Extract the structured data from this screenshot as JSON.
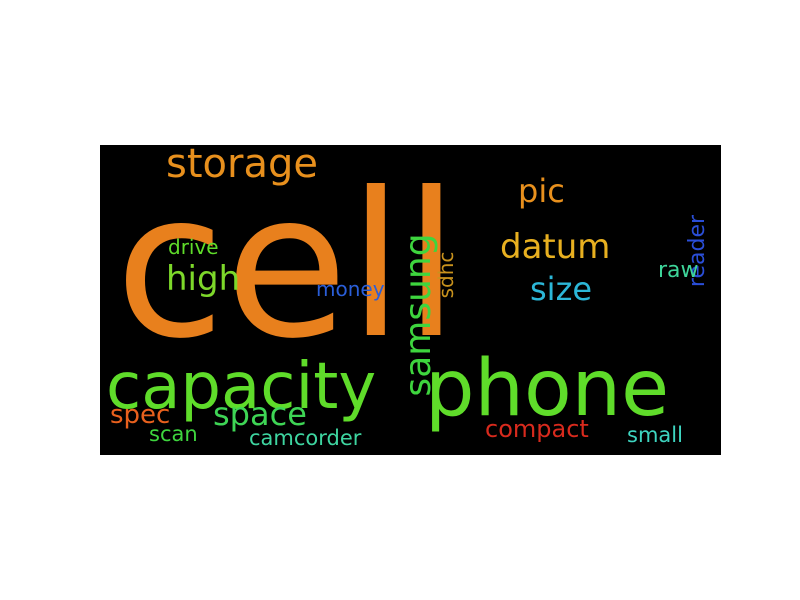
{
  "words": [
    {
      "id": "cell",
      "text": "cell",
      "weight": 1.0,
      "color": "#e8801d",
      "vertical": false
    },
    {
      "id": "phone",
      "text": "phone",
      "weight": 0.55,
      "color": "#5fdc2a",
      "vertical": false
    },
    {
      "id": "capacity",
      "text": "capacity",
      "weight": 0.45,
      "color": "#5fdc2a",
      "vertical": false
    },
    {
      "id": "storage",
      "text": "storage",
      "weight": 0.22,
      "color": "#e8901d",
      "vertical": false
    },
    {
      "id": "samsung",
      "text": "samsung",
      "weight": 0.22,
      "color": "#3ed53e",
      "vertical": true
    },
    {
      "id": "datum",
      "text": "datum",
      "weight": 0.2,
      "color": "#e8b020",
      "vertical": false
    },
    {
      "id": "high",
      "text": "high",
      "weight": 0.2,
      "color": "#7dd82a",
      "vertical": false
    },
    {
      "id": "space",
      "text": "space",
      "weight": 0.2,
      "color": "#3ed555",
      "vertical": false
    },
    {
      "id": "size",
      "text": "size",
      "weight": 0.19,
      "color": "#2cb7d8",
      "vertical": false
    },
    {
      "id": "pic",
      "text": "pic",
      "weight": 0.18,
      "color": "#e8901d",
      "vertical": false
    },
    {
      "id": "spec",
      "text": "spec",
      "weight": 0.15,
      "color": "#e8601d",
      "vertical": false
    },
    {
      "id": "compact",
      "text": "compact",
      "weight": 0.15,
      "color": "#d82a1d",
      "vertical": false
    },
    {
      "id": "reader",
      "text": "reader",
      "weight": 0.12,
      "color": "#2a4ed8",
      "vertical": true
    },
    {
      "id": "sdhc",
      "text": "sdhc",
      "weight": 0.12,
      "color": "#c8921d",
      "vertical": true
    },
    {
      "id": "raw",
      "text": "raw",
      "weight": 0.12,
      "color": "#3ed59a",
      "vertical": false
    },
    {
      "id": "camcorder",
      "text": "camcorder",
      "weight": 0.12,
      "color": "#3ed5a0",
      "vertical": false
    },
    {
      "id": "scan",
      "text": "scan",
      "weight": 0.12,
      "color": "#3ed53e",
      "vertical": false
    },
    {
      "id": "small",
      "text": "small",
      "weight": 0.12,
      "color": "#3ed5c0",
      "vertical": false
    },
    {
      "id": "drive",
      "text": "drive",
      "weight": 0.11,
      "color": "#5fdc2a",
      "vertical": false
    },
    {
      "id": "money",
      "text": "money",
      "weight": 0.1,
      "color": "#2a5ed8",
      "vertical": false
    }
  ]
}
